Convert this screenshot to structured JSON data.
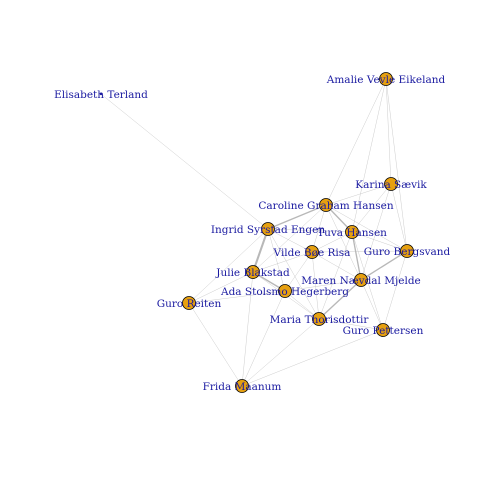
{
  "graph": {
    "type": "network",
    "colors": {
      "node_fill": "#e6a010",
      "node_stroke": "#000000",
      "label": "#1a1aa0",
      "edge": "#b8b8b8"
    },
    "nodes": [
      {
        "id": "amalie",
        "label": "Amalie Vevle Eikeland"
      },
      {
        "id": "elisabeth",
        "label": "Elisabeth Terland"
      },
      {
        "id": "karina",
        "label": "Karina Sævik"
      },
      {
        "id": "caroline",
        "label": "Caroline Graham Hansen"
      },
      {
        "id": "ingrid",
        "label": "Ingrid Syrstad Engen"
      },
      {
        "id": "tuva",
        "label": "Tuva Hansen"
      },
      {
        "id": "vilde",
        "label": "Vilde Bøe Risa"
      },
      {
        "id": "guro_b",
        "label": "Guro Bergsvand"
      },
      {
        "id": "julie",
        "label": "Julie Blakstad"
      },
      {
        "id": "maren",
        "label": "Maren Nævdal Mjelde"
      },
      {
        "id": "ada",
        "label": "Ada Stolsmo Hegerberg"
      },
      {
        "id": "guro_r",
        "label": "Guro Reiten"
      },
      {
        "id": "maria",
        "label": "Maria Thorisdottir"
      },
      {
        "id": "guro_p",
        "label": "Guro Pettersen"
      },
      {
        "id": "frida",
        "label": "Frida Maanum"
      }
    ],
    "edges": [
      {
        "source": "elisabeth",
        "target": "ingrid",
        "weight": 1
      },
      {
        "source": "amalie",
        "target": "caroline",
        "weight": 1
      },
      {
        "source": "amalie",
        "target": "karina",
        "weight": 1
      },
      {
        "source": "amalie",
        "target": "tuva",
        "weight": 1
      },
      {
        "source": "amalie",
        "target": "guro_b",
        "weight": 1
      },
      {
        "source": "karina",
        "target": "tuva",
        "weight": 1
      },
      {
        "source": "karina",
        "target": "guro_b",
        "weight": 1
      },
      {
        "source": "karina",
        "target": "caroline",
        "weight": 1
      },
      {
        "source": "karina",
        "target": "maren",
        "weight": 1
      },
      {
        "source": "caroline",
        "target": "ingrid",
        "weight": 2
      },
      {
        "source": "caroline",
        "target": "tuva",
        "weight": 2
      },
      {
        "source": "caroline",
        "target": "vilde",
        "weight": 1
      },
      {
        "source": "caroline",
        "target": "guro_b",
        "weight": 1
      },
      {
        "source": "caroline",
        "target": "maren",
        "weight": 1
      },
      {
        "source": "caroline",
        "target": "julie",
        "weight": 1
      },
      {
        "source": "ingrid",
        "target": "julie",
        "weight": 3
      },
      {
        "source": "ingrid",
        "target": "tuva",
        "weight": 1
      },
      {
        "source": "ingrid",
        "target": "vilde",
        "weight": 1
      },
      {
        "source": "ingrid",
        "target": "ada",
        "weight": 1
      },
      {
        "source": "ingrid",
        "target": "guro_r",
        "weight": 1
      },
      {
        "source": "ingrid",
        "target": "maria",
        "weight": 1
      },
      {
        "source": "tuva",
        "target": "guro_b",
        "weight": 1
      },
      {
        "source": "tuva",
        "target": "maren",
        "weight": 2
      },
      {
        "source": "tuva",
        "target": "vilde",
        "weight": 1
      },
      {
        "source": "tuva",
        "target": "maria",
        "weight": 1
      },
      {
        "source": "tuva",
        "target": "guro_p",
        "weight": 1
      },
      {
        "source": "guro_b",
        "target": "maren",
        "weight": 2
      },
      {
        "source": "guro_b",
        "target": "guro_p",
        "weight": 1
      },
      {
        "source": "guro_b",
        "target": "vilde",
        "weight": 1
      },
      {
        "source": "vilde",
        "target": "maren",
        "weight": 1
      },
      {
        "source": "vilde",
        "target": "ada",
        "weight": 1
      },
      {
        "source": "vilde",
        "target": "julie",
        "weight": 1
      },
      {
        "source": "vilde",
        "target": "maria",
        "weight": 1
      },
      {
        "source": "julie",
        "target": "ada",
        "weight": 2
      },
      {
        "source": "julie",
        "target": "guro_r",
        "weight": 1
      },
      {
        "source": "julie",
        "target": "frida",
        "weight": 1
      },
      {
        "source": "julie",
        "target": "maria",
        "weight": 1
      },
      {
        "source": "maren",
        "target": "ada",
        "weight": 1
      },
      {
        "source": "maren",
        "target": "maria",
        "weight": 2
      },
      {
        "source": "maren",
        "target": "guro_p",
        "weight": 1
      },
      {
        "source": "ada",
        "target": "maria",
        "weight": 1
      },
      {
        "source": "ada",
        "target": "guro_r",
        "weight": 1
      },
      {
        "source": "ada",
        "target": "frida",
        "weight": 1
      },
      {
        "source": "maria",
        "target": "guro_p",
        "weight": 1
      },
      {
        "source": "maria",
        "target": "frida",
        "weight": 1
      },
      {
        "source": "guro_r",
        "target": "frida",
        "weight": 1
      },
      {
        "source": "guro_p",
        "target": "frida",
        "weight": 1
      }
    ]
  }
}
